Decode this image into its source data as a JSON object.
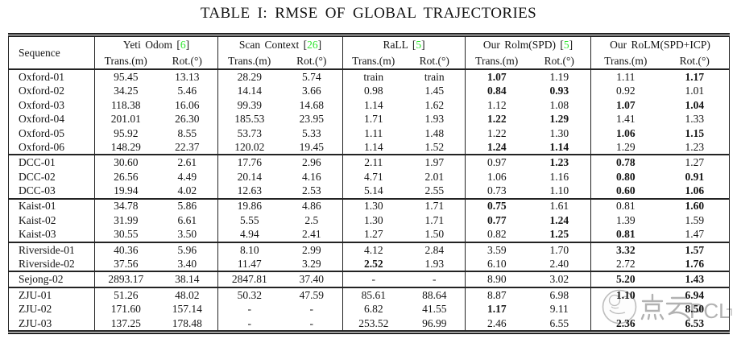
{
  "page": {
    "caption": "TABLE I: RMSE OF GLOBAL TRAJECTORIES"
  },
  "colors": {
    "citation_green": "#2ee52e",
    "rule_black": "#232323",
    "watermark_gray": "#9c9c9c"
  },
  "table": {
    "sequence_header": "Sequence",
    "trans_header": "Trans.(m)",
    "rot_header": "Rot.(°)",
    "methods": [
      {
        "label": "Yeti Odom",
        "cite": "6"
      },
      {
        "label": "Scan Context",
        "cite": "26"
      },
      {
        "label": "RaLL",
        "cite": "5"
      },
      {
        "label": "Our Rolm(SPD)",
        "cite": "5"
      },
      {
        "label": "Our RoLM(SPD+ICP)",
        "cite": null
      }
    ],
    "rows": [
      {
        "seq": "Oxford-01",
        "group_start": true,
        "cells": [
          "95.45",
          "13.13",
          "28.29",
          "5.74",
          "train",
          "train",
          "1.07",
          "1.19",
          "1.11",
          "1.17"
        ],
        "bold": [
          6,
          9
        ]
      },
      {
        "seq": "Oxford-02",
        "group_start": false,
        "cells": [
          "34.25",
          "5.46",
          "14.14",
          "3.66",
          "0.98",
          "1.45",
          "0.84",
          "0.93",
          "0.92",
          "1.01"
        ],
        "bold": [
          6,
          7
        ]
      },
      {
        "seq": "Oxford-03",
        "group_start": false,
        "cells": [
          "118.38",
          "16.06",
          "99.39",
          "14.68",
          "1.14",
          "1.62",
          "1.12",
          "1.08",
          "1.07",
          "1.04"
        ],
        "bold": [
          8,
          9
        ]
      },
      {
        "seq": "Oxford-04",
        "group_start": false,
        "cells": [
          "201.01",
          "26.30",
          "185.53",
          "23.95",
          "1.71",
          "1.93",
          "1.22",
          "1.29",
          "1.41",
          "1.33"
        ],
        "bold": [
          6,
          7
        ]
      },
      {
        "seq": "Oxford-05",
        "group_start": false,
        "cells": [
          "95.92",
          "8.55",
          "53.73",
          "5.33",
          "1.11",
          "1.48",
          "1.22",
          "1.30",
          "1.06",
          "1.15"
        ],
        "bold": [
          8,
          9
        ]
      },
      {
        "seq": "Oxford-06",
        "group_start": false,
        "cells": [
          "148.29",
          "22.37",
          "120.02",
          "19.45",
          "1.14",
          "1.52",
          "1.24",
          "1.14",
          "1.29",
          "1.23"
        ],
        "bold": [
          6,
          7
        ]
      },
      {
        "seq": "DCC-01",
        "group_start": true,
        "cells": [
          "30.60",
          "2.61",
          "17.76",
          "2.96",
          "2.11",
          "1.97",
          "0.97",
          "1.23",
          "0.78",
          "1.27"
        ],
        "bold": [
          7,
          8
        ]
      },
      {
        "seq": "DCC-02",
        "group_start": false,
        "cells": [
          "26.56",
          "4.49",
          "20.14",
          "4.16",
          "4.71",
          "2.01",
          "1.06",
          "1.16",
          "0.80",
          "0.91"
        ],
        "bold": [
          8,
          9
        ]
      },
      {
        "seq": "DCC-03",
        "group_start": false,
        "cells": [
          "19.94",
          "4.02",
          "12.63",
          "2.53",
          "5.14",
          "2.55",
          "0.73",
          "1.10",
          "0.60",
          "1.06"
        ],
        "bold": [
          8,
          9
        ]
      },
      {
        "seq": "Kaist-01",
        "group_start": true,
        "cells": [
          "34.78",
          "5.86",
          "19.86",
          "4.86",
          "1.30",
          "1.71",
          "0.75",
          "1.61",
          "0.81",
          "1.60"
        ],
        "bold": [
          6,
          9
        ]
      },
      {
        "seq": "Kaist-02",
        "group_start": false,
        "cells": [
          "31.99",
          "6.61",
          "5.55",
          "2.5",
          "1.30",
          "1.71",
          "0.77",
          "1.24",
          "1.39",
          "1.59"
        ],
        "bold": [
          6,
          7
        ]
      },
      {
        "seq": "Kaist-03",
        "group_start": false,
        "cells": [
          "30.55",
          "3.50",
          "4.94",
          "2.41",
          "1.27",
          "1.50",
          "0.82",
          "1.25",
          "0.81",
          "1.47"
        ],
        "bold": [
          7,
          8
        ]
      },
      {
        "seq": "Riverside-01",
        "group_start": true,
        "cells": [
          "40.36",
          "5.96",
          "8.10",
          "2.99",
          "4.12",
          "2.84",
          "3.59",
          "1.70",
          "3.32",
          "1.57"
        ],
        "bold": [
          8,
          9
        ]
      },
      {
        "seq": "Riverside-02",
        "group_start": false,
        "cells": [
          "37.56",
          "3.40",
          "11.47",
          "3.29",
          "2.52",
          "1.93",
          "6.10",
          "2.40",
          "2.72",
          "1.76"
        ],
        "bold": [
          4,
          9
        ]
      },
      {
        "seq": "Sejong-02",
        "group_start": true,
        "cells": [
          "2893.17",
          "38.14",
          "2847.81",
          "37.40",
          "-",
          "-",
          "8.90",
          "3.02",
          "5.20",
          "1.43"
        ],
        "bold": [
          8,
          9
        ]
      },
      {
        "seq": "ZJU-01",
        "group_start": true,
        "cells": [
          "51.26",
          "48.02",
          "50.32",
          "47.59",
          "85.61",
          "88.64",
          "8.87",
          "6.98",
          "1.10",
          "6.94"
        ],
        "bold": [
          8,
          9
        ]
      },
      {
        "seq": "ZJU-02",
        "group_start": false,
        "cells": [
          "171.60",
          "157.14",
          "-",
          "-",
          "6.82",
          "41.55",
          "1.17",
          "9.11",
          "",
          "8.50"
        ],
        "bold": [
          6,
          9
        ]
      },
      {
        "seq": "ZJU-03",
        "group_start": false,
        "cells": [
          "137.25",
          "178.48",
          "-",
          "-",
          "253.52",
          "96.99",
          "2.46",
          "6.55",
          "2.36",
          "6.53"
        ],
        "bold": [
          8,
          9
        ]
      }
    ]
  },
  "watermark": {
    "text_cjk": "点云",
    "text_latin": "PCL"
  }
}
